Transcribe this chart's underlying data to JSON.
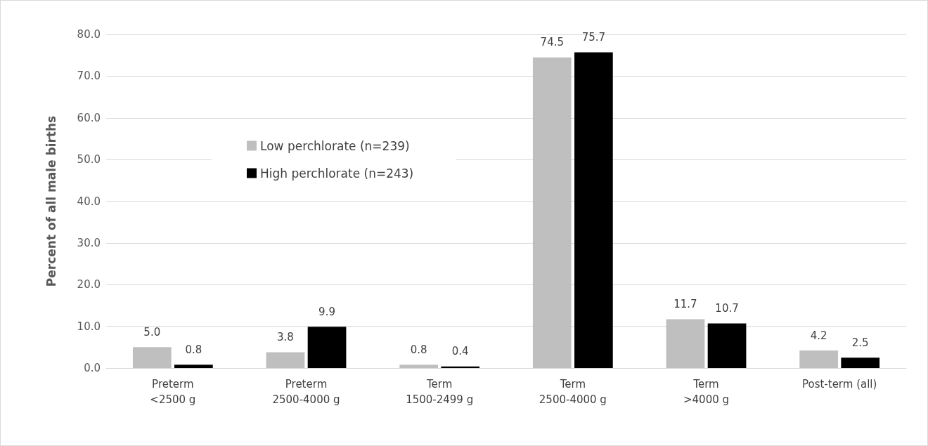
{
  "chart_data": {
    "type": "bar",
    "ylabel": "Percent of all male births",
    "categories": [
      "Preterm\n<2500 g",
      "Preterm\n2500-4000 g",
      "Term\n1500-2499 g",
      "Term\n2500-4000 g",
      "Term\n>4000 g",
      "Post-term (all)"
    ],
    "series": [
      {
        "name": "Low perchlorate (n=239)",
        "color": "#bfbfbf",
        "values": [
          5.0,
          3.8,
          0.8,
          74.5,
          11.7,
          4.2
        ],
        "value_labels": [
          "5.0",
          "3.8",
          "0.8",
          "74.5",
          "11.7",
          "4.2"
        ]
      },
      {
        "name": "High perchlorate (n=243)",
        "color": "#000000",
        "values": [
          0.8,
          9.9,
          0.4,
          75.7,
          10.7,
          2.5
        ],
        "value_labels": [
          "0.8",
          "9.9",
          "0.4",
          "75.7",
          "10.7",
          "2.5"
        ]
      }
    ],
    "ylim": [
      0,
      80
    ],
    "yticks": [
      {
        "value": 0,
        "label": "0.0"
      },
      {
        "value": 10,
        "label": "10.0"
      },
      {
        "value": 20,
        "label": "20.0"
      },
      {
        "value": 30,
        "label": "30.0"
      },
      {
        "value": 40,
        "label": "40.0"
      },
      {
        "value": 50,
        "label": "50.0"
      },
      {
        "value": 60,
        "label": "60.0"
      },
      {
        "value": 70,
        "label": "70.0"
      },
      {
        "value": 80,
        "label": "80.0"
      }
    ],
    "grid": "y",
    "legend": "left"
  }
}
